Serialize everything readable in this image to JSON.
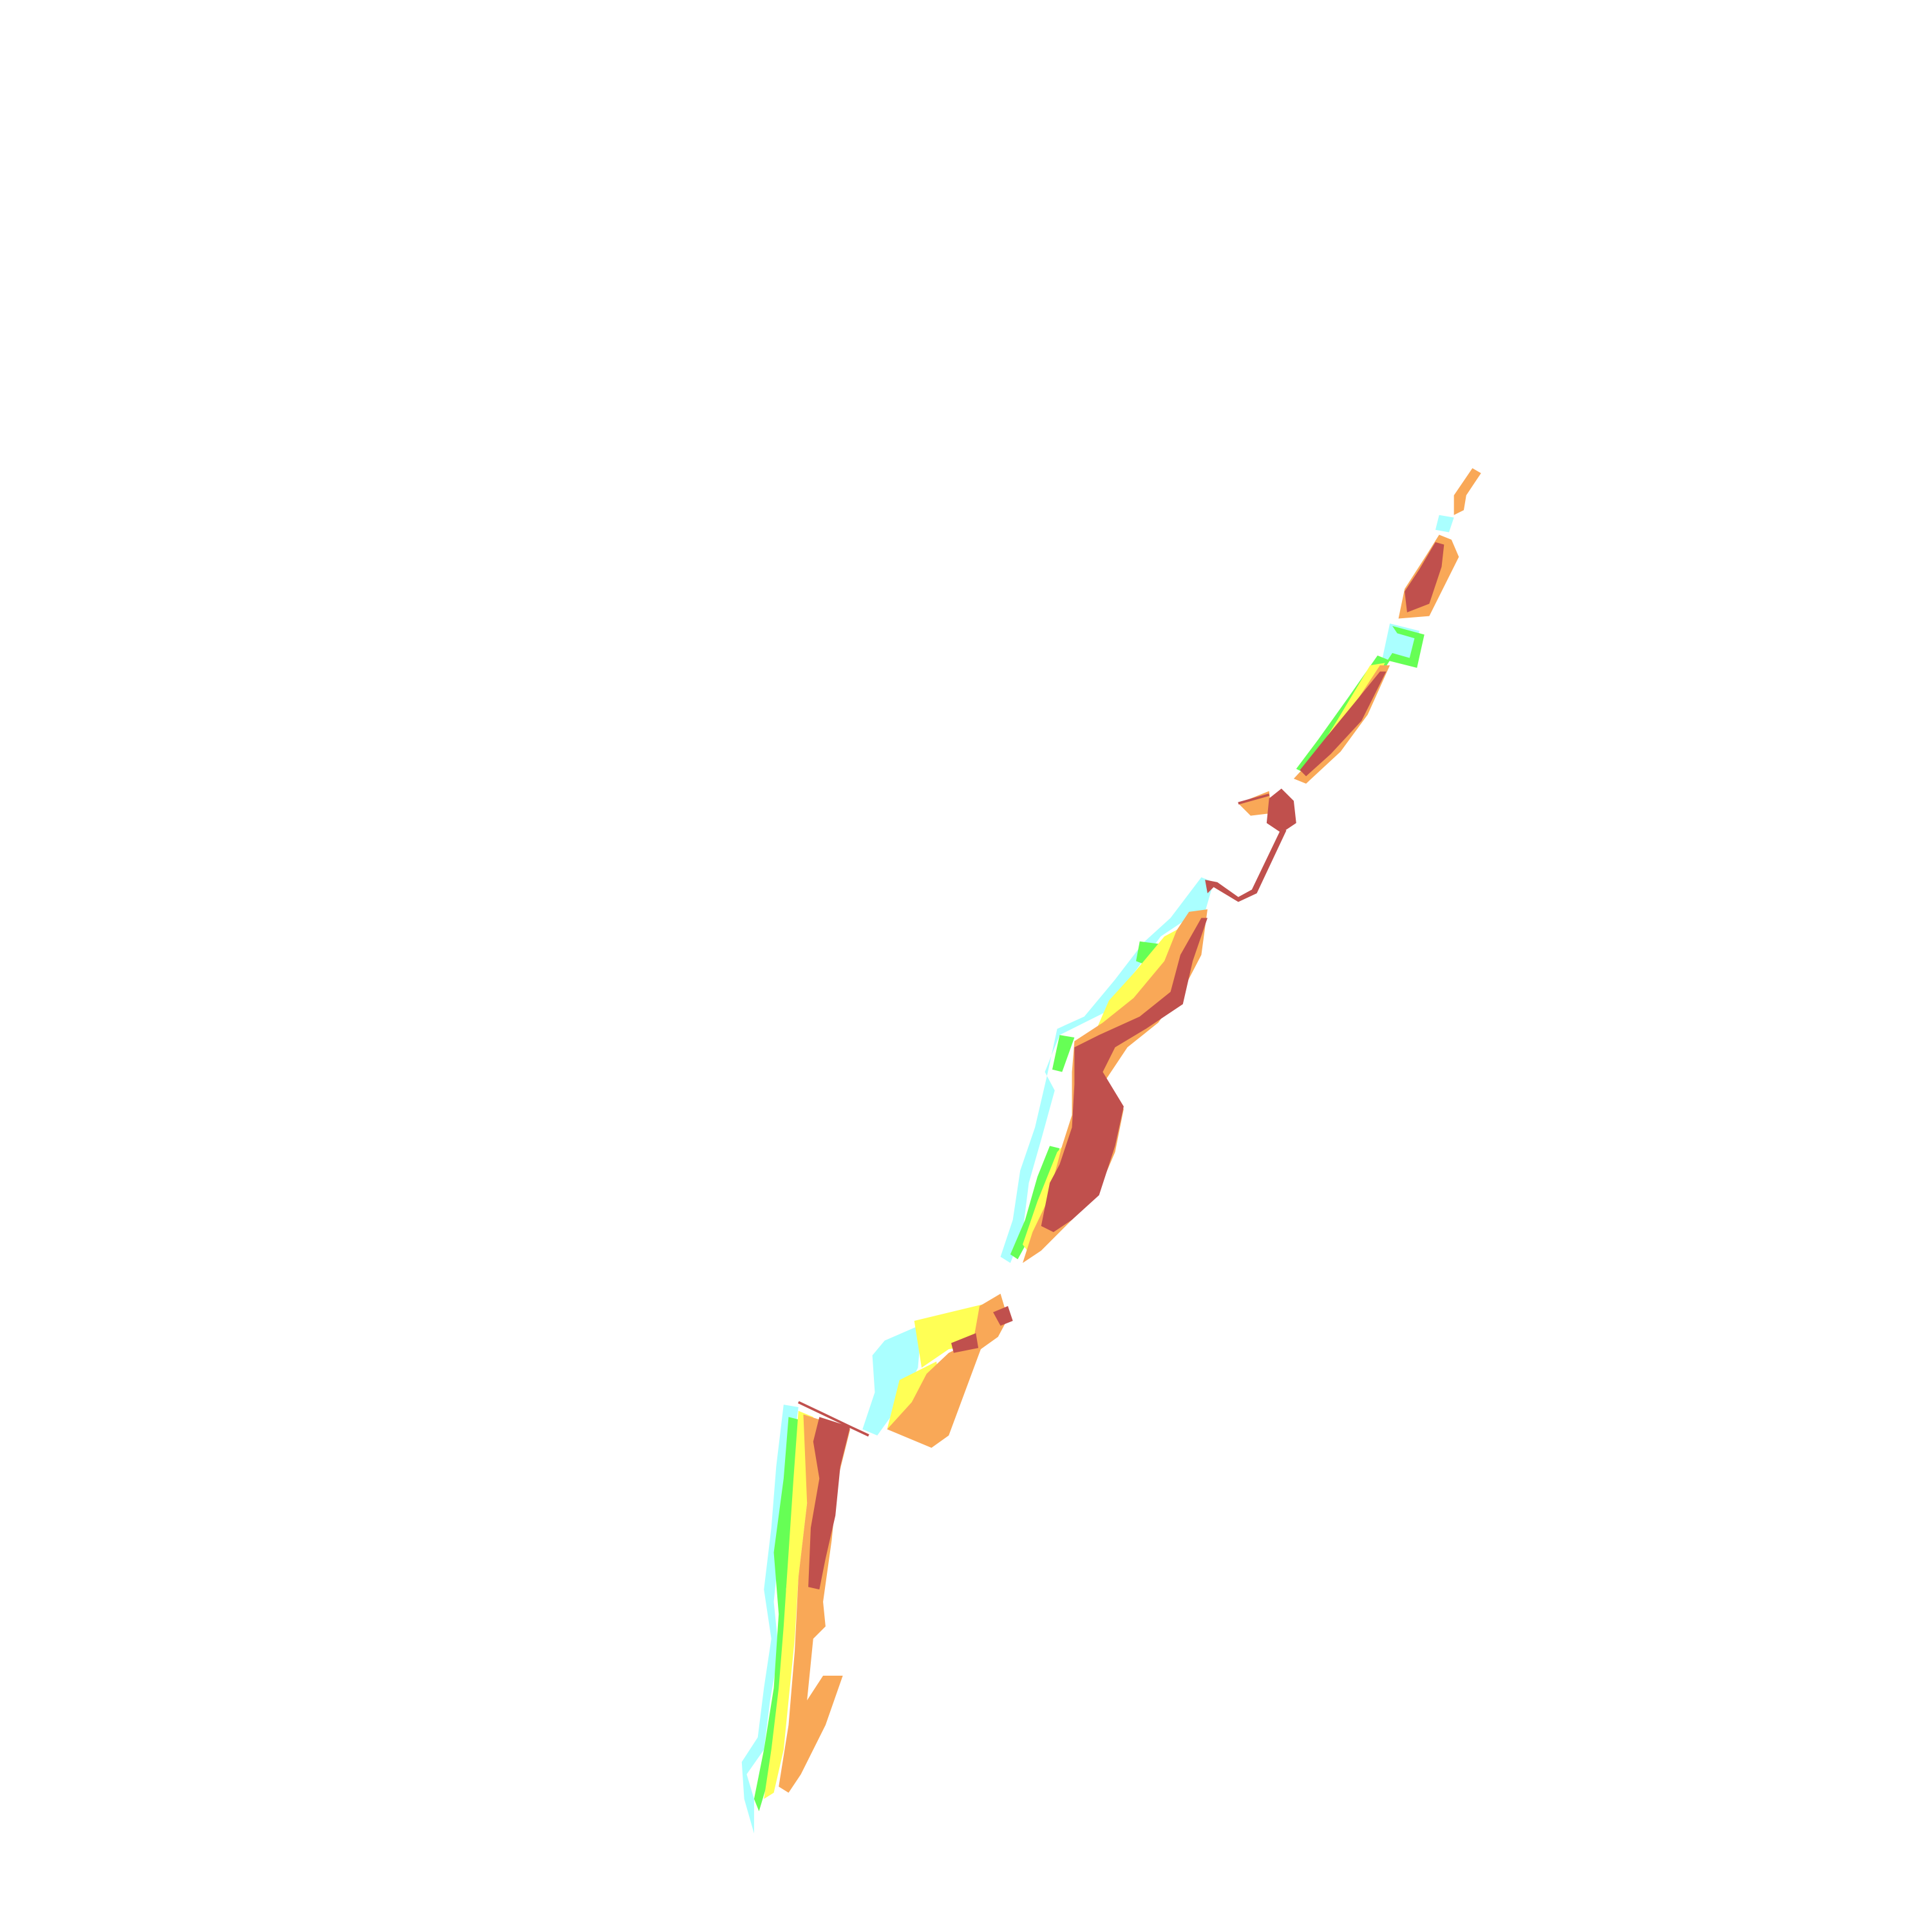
{
  "map": {
    "background": "#ffffff",
    "classes": [
      {
        "id": "class-1",
        "color": "#aaffff"
      },
      {
        "id": "class-2",
        "color": "#66ff55"
      },
      {
        "id": "class-3",
        "color": "#ffff55"
      },
      {
        "id": "class-4",
        "color": "#f9a857"
      },
      {
        "id": "class-5",
        "color": "#c0504d"
      }
    ]
  }
}
